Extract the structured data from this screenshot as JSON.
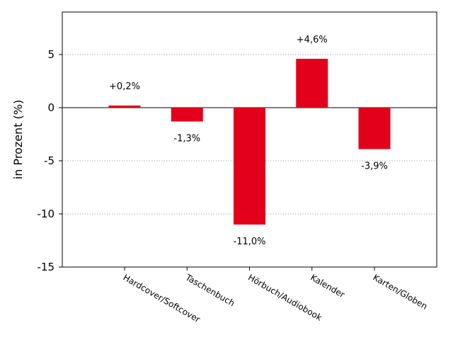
{
  "chart_data": {
    "type": "bar",
    "categories": [
      "Hardcover/Softcover",
      "Taschenbuch",
      "Hörbuch/Audiobook",
      "Kalender",
      "Karten/Globen"
    ],
    "values": [
      0.2,
      -1.3,
      -11.0,
      4.6,
      -3.9
    ],
    "data_labels": [
      "+0,2%",
      "-1,3%",
      "-11,0%",
      "+4,6%",
      "-3,9%"
    ],
    "ylabel": "in Prozent (%)",
    "ylim": [
      -15,
      9
    ],
    "yticks": [
      5,
      0,
      -5,
      -10,
      -15
    ],
    "ytick_labels": [
      "5",
      "0",
      "-5",
      "-10",
      "-15"
    ],
    "grid": "horizontal dotted",
    "colors": {
      "bar": "#e2001a",
      "grid": "#b0b0b0",
      "axis": "#000000"
    }
  }
}
